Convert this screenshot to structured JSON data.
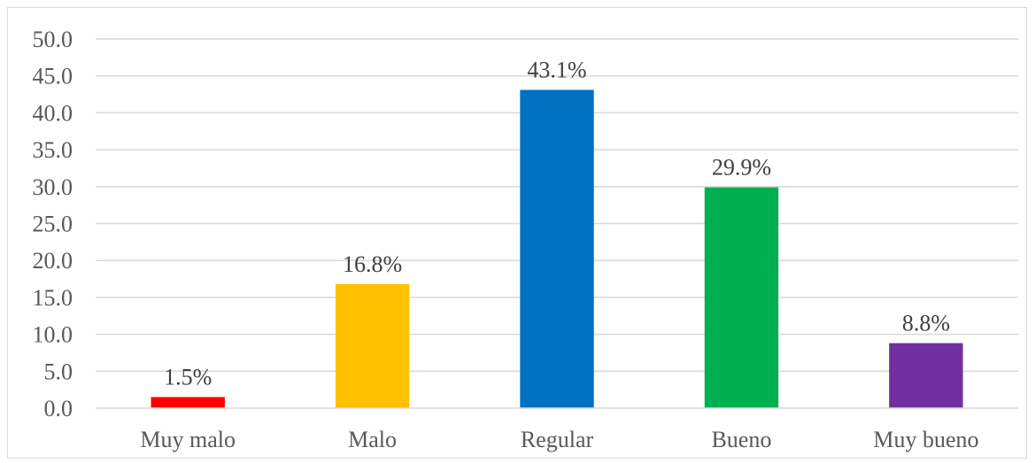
{
  "chart_data": {
    "type": "bar",
    "categories": [
      "Muy malo",
      "Malo",
      "Regular",
      "Bueno",
      "Muy bueno"
    ],
    "values": [
      1.5,
      16.8,
      43.1,
      29.9,
      8.8
    ],
    "data_labels": [
      "1.5%",
      "16.8%",
      "43.1%",
      "29.9%",
      "8.8%"
    ],
    "bar_colors": [
      "#ff0000",
      "#ffc000",
      "#0070c0",
      "#00b050",
      "#7030a0"
    ],
    "ylim": [
      0,
      50
    ],
    "yticks": [
      0,
      5,
      10,
      15,
      20,
      25,
      30,
      35,
      40,
      45,
      50
    ],
    "ytick_labels": [
      "0.0",
      "5.0",
      "10.0",
      "15.0",
      "20.0",
      "25.0",
      "30.0",
      "35.0",
      "40.0",
      "45.0",
      "50.0"
    ],
    "grid": true,
    "gridline_color": "#d9d9d9",
    "axis_color": "#d9d9d9",
    "title": "",
    "xlabel": "",
    "ylabel": "",
    "legend": "none"
  }
}
